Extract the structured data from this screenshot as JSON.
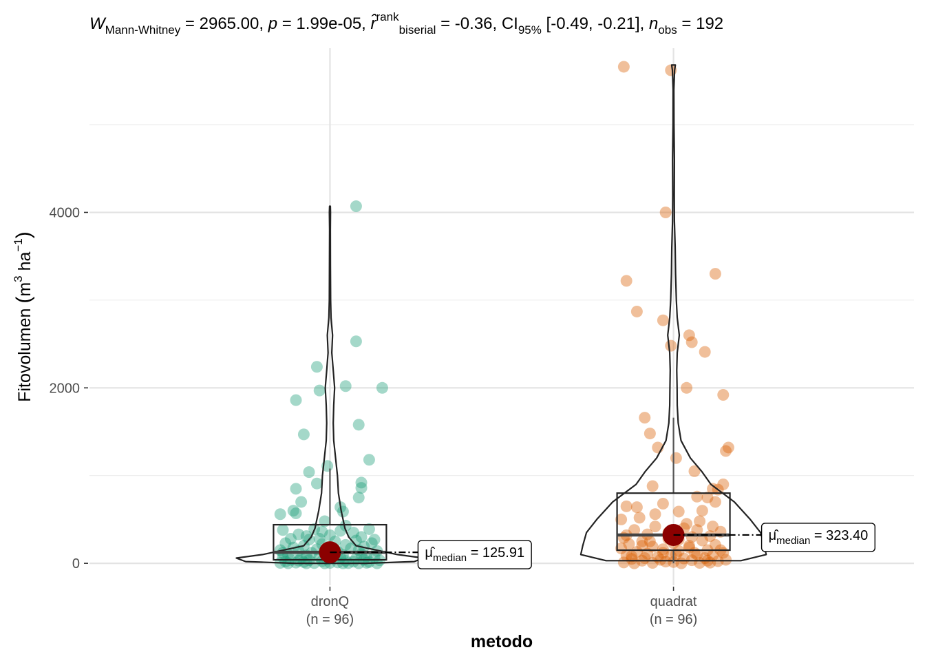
{
  "chart_data": {
    "type": "violin-box-scatter",
    "subtitle": {
      "parts": [
        {
          "t": "W",
          "italic": true
        },
        {
          "t": "Mann-Whitney",
          "sub": true
        },
        {
          "t": " = 2965.00, "
        },
        {
          "t": "p",
          "italic": true
        },
        {
          "t": " = 1.99e-05, "
        },
        {
          "t": "r̂",
          "italic": true
        },
        {
          "t": "rank",
          "sup": true
        },
        {
          "t": "biserial",
          "sub": true
        },
        {
          "t": " = -0.36, CI"
        },
        {
          "t": "95%",
          "sub": true
        },
        {
          "t": " [-0.49, -0.21], "
        },
        {
          "t": "n",
          "italic": true
        },
        {
          "t": "obs",
          "sub": true
        },
        {
          "t": " = 192"
        }
      ]
    },
    "xlabel": "metodo",
    "ylabel": {
      "parts": [
        {
          "t": "Fitovolumen "
        },
        {
          "t": "(",
          "big": true
        },
        {
          "t": "m"
        },
        {
          "t": "3",
          "sup": true
        },
        {
          "t": " ha"
        },
        {
          "t": "−1",
          "sup": true
        },
        {
          "t": ")",
          "big": true
        }
      ]
    },
    "yticks": [
      0,
      2000,
      4000
    ],
    "ylim": [
      -250,
      5950
    ],
    "grid": true,
    "categories": [
      {
        "name": "dronQ",
        "n_label": "(n = 96)",
        "color": "#1b9e77",
        "median": 125.91,
        "box": {
          "q1": 40,
          "median": 125.91,
          "q3": 440,
          "whisker_low": 0,
          "whisker_high": 1080
        },
        "median_label": {
          "symbol": "μ̂",
          "sub": "median",
          "value": "= 125.91"
        },
        "violin": [
          [
            0,
            0.38
          ],
          [
            20,
            0.9
          ],
          [
            60,
            1.0
          ],
          [
            100,
            0.72
          ],
          [
            200,
            0.28
          ],
          [
            300,
            0.2
          ],
          [
            400,
            0.16
          ],
          [
            600,
            0.12
          ],
          [
            800,
            0.09
          ],
          [
            1000,
            0.08
          ],
          [
            1200,
            0.06
          ],
          [
            1400,
            0.04
          ],
          [
            1600,
            0.035
          ],
          [
            1800,
            0.04
          ],
          [
            2000,
            0.05
          ],
          [
            2200,
            0.035
          ],
          [
            2400,
            0.02
          ],
          [
            2600,
            0.028
          ],
          [
            2800,
            0.012
          ],
          [
            3000,
            0.007
          ],
          [
            3400,
            0.005
          ],
          [
            3800,
            0.004
          ],
          [
            4000,
            0.006
          ],
          [
            4070,
            0.004
          ]
        ],
        "points": [
          [
            0.1,
            4070
          ],
          [
            0.1,
            2530
          ],
          [
            0.2,
            2000
          ],
          [
            -0.05,
            2240
          ],
          [
            0.06,
            2020
          ],
          [
            -0.04,
            1970
          ],
          [
            -0.13,
            1860
          ],
          [
            0.11,
            1580
          ],
          [
            -0.1,
            1470
          ],
          [
            0.15,
            1180
          ],
          [
            -0.01,
            1110
          ],
          [
            -0.08,
            1040
          ],
          [
            0.12,
            920
          ],
          [
            0.12,
            860
          ],
          [
            -0.05,
            910
          ],
          [
            -0.13,
            850
          ],
          [
            0.11,
            750
          ],
          [
            -0.11,
            700
          ],
          [
            0.04,
            640
          ],
          [
            -0.14,
            600
          ],
          [
            0.05,
            590
          ],
          [
            -0.19,
            560
          ],
          [
            -0.13,
            570
          ],
          [
            -0.18,
            380
          ],
          [
            -0.12,
            330
          ],
          [
            -0.06,
            390
          ],
          [
            -0.03,
            360
          ],
          [
            0.0,
            320
          ],
          [
            0.04,
            370
          ],
          [
            0.09,
            350
          ],
          [
            0.15,
            390
          ],
          [
            -0.15,
            280
          ],
          [
            -0.08,
            270
          ],
          [
            0.02,
            250
          ],
          [
            0.1,
            260
          ],
          [
            0.17,
            270
          ],
          [
            -0.17,
            230
          ],
          [
            -0.1,
            200
          ],
          [
            -0.03,
            220
          ],
          [
            0.06,
            210
          ],
          [
            0.13,
            190
          ],
          [
            -0.19,
            150
          ],
          [
            -0.12,
            140
          ],
          [
            -0.05,
            160
          ],
          [
            0.03,
            130
          ],
          [
            0.11,
            150
          ],
          [
            0.18,
            140
          ],
          [
            -0.16,
            100
          ],
          [
            -0.09,
            90
          ],
          [
            -0.02,
            110
          ],
          [
            0.05,
            95
          ],
          [
            0.12,
            105
          ],
          [
            -0.18,
            70
          ],
          [
            -0.11,
            60
          ],
          [
            -0.04,
            75
          ],
          [
            0.04,
            65
          ],
          [
            0.1,
            55
          ],
          [
            0.17,
            70
          ],
          [
            -0.15,
            40
          ],
          [
            -0.08,
            35
          ],
          [
            -0.01,
            45
          ],
          [
            0.06,
            30
          ],
          [
            0.13,
            40
          ],
          [
            0.19,
            35
          ],
          [
            -0.17,
            20
          ],
          [
            -0.1,
            15
          ],
          [
            -0.03,
            25
          ],
          [
            0.03,
            10
          ],
          [
            0.09,
            20
          ],
          [
            0.15,
            15
          ],
          [
            -0.19,
            5
          ],
          [
            -0.13,
            8
          ],
          [
            -0.06,
            3
          ],
          [
            0.0,
            5
          ],
          [
            0.07,
            2
          ],
          [
            0.14,
            6
          ],
          [
            -0.16,
            0
          ],
          [
            -0.09,
            0
          ],
          [
            -0.02,
            0
          ],
          [
            0.05,
            0
          ],
          [
            0.11,
            0
          ],
          [
            0.18,
            0
          ],
          [
            -0.12,
            30
          ],
          [
            0.01,
            60
          ],
          [
            -0.07,
            120
          ],
          [
            0.08,
            170
          ],
          [
            -0.14,
            180
          ],
          [
            0.16,
            230
          ],
          [
            -0.04,
            280
          ],
          [
            0.12,
            300
          ],
          [
            -0.09,
            310
          ],
          [
            0.06,
            430
          ],
          [
            -0.02,
            480
          ],
          [
            0.14,
            80
          ],
          [
            -0.18,
            120
          ],
          [
            0.02,
            150
          ]
        ]
      },
      {
        "name": "quadrat",
        "n_label": "(n = 96)",
        "color": "#d95f02",
        "median": 323.4,
        "box": {
          "q1": 150,
          "median": 323.4,
          "q3": 800,
          "whisker_low": 0,
          "whisker_high": 1660
        },
        "median_label": {
          "symbol": "μ̂",
          "sub": "median",
          "value": "= 323.40"
        },
        "violin": [
          [
            30,
            0.72
          ],
          [
            100,
            0.99
          ],
          [
            200,
            0.97
          ],
          [
            350,
            0.93
          ],
          [
            500,
            0.82
          ],
          [
            700,
            0.65
          ],
          [
            900,
            0.4
          ],
          [
            1050,
            0.3
          ],
          [
            1200,
            0.18
          ],
          [
            1400,
            0.08
          ],
          [
            1600,
            0.05
          ],
          [
            1800,
            0.04
          ],
          [
            2000,
            0.038
          ],
          [
            2200,
            0.035
          ],
          [
            2400,
            0.04
          ],
          [
            2600,
            0.062
          ],
          [
            2800,
            0.04
          ],
          [
            3000,
            0.03
          ],
          [
            3300,
            0.022
          ],
          [
            3600,
            0.018
          ],
          [
            3900,
            0.01
          ],
          [
            4200,
            0.008
          ],
          [
            4600,
            0.01
          ],
          [
            5000,
            0.005
          ],
          [
            5400,
            0.004
          ],
          [
            5620,
            0.012
          ],
          [
            5680,
            0.02
          ]
        ],
        "points": [
          [
            -0.19,
            5660
          ],
          [
            -0.01,
            5620
          ],
          [
            -0.03,
            4000
          ],
          [
            0.16,
            3300
          ],
          [
            -0.18,
            3220
          ],
          [
            -0.14,
            2870
          ],
          [
            -0.04,
            2770
          ],
          [
            0.06,
            2600
          ],
          [
            0.07,
            2520
          ],
          [
            -0.01,
            2480
          ],
          [
            0.12,
            2410
          ],
          [
            0.05,
            2000
          ],
          [
            0.19,
            1920
          ],
          [
            -0.11,
            1660
          ],
          [
            -0.09,
            1480
          ],
          [
            0.21,
            1320
          ],
          [
            -0.06,
            1320
          ],
          [
            0.2,
            1280
          ],
          [
            0.01,
            1200
          ],
          [
            0.08,
            1050
          ],
          [
            0.19,
            900
          ],
          [
            0.15,
            850
          ],
          [
            0.17,
            840
          ],
          [
            -0.08,
            880
          ],
          [
            -0.18,
            650
          ],
          [
            0.09,
            760
          ],
          [
            0.13,
            750
          ],
          [
            -0.04,
            680
          ],
          [
            -0.14,
            640
          ],
          [
            0.02,
            590
          ],
          [
            -0.2,
            500
          ],
          [
            -0.07,
            420
          ],
          [
            0.1,
            480
          ],
          [
            -0.15,
            380
          ],
          [
            0.04,
            400
          ],
          [
            0.18,
            360
          ],
          [
            -0.1,
            330
          ],
          [
            0.14,
            310
          ],
          [
            -0.19,
            290
          ],
          [
            -0.02,
            280
          ],
          [
            0.07,
            300
          ],
          [
            -0.12,
            250
          ],
          [
            0.11,
            260
          ],
          [
            -0.17,
            220
          ],
          [
            0.0,
            230
          ],
          [
            0.16,
            210
          ],
          [
            -0.08,
            190
          ],
          [
            0.06,
            200
          ],
          [
            -0.2,
            170
          ],
          [
            -0.04,
            160
          ],
          [
            0.13,
            150
          ],
          [
            -0.14,
            130
          ],
          [
            0.02,
            140
          ],
          [
            0.19,
            120
          ],
          [
            -0.1,
            110
          ],
          [
            0.09,
            100
          ],
          [
            -0.18,
            90
          ],
          [
            -0.01,
            80
          ],
          [
            0.15,
            90
          ],
          [
            -0.06,
            70
          ],
          [
            0.12,
            60
          ],
          [
            -0.16,
            50
          ],
          [
            0.04,
            55
          ],
          [
            0.2,
            40
          ],
          [
            -0.12,
            30
          ],
          [
            0.07,
            35
          ],
          [
            -0.03,
            20
          ],
          [
            0.17,
            25
          ],
          [
            -0.19,
            10
          ],
          [
            0.0,
            15
          ],
          [
            0.1,
            5
          ],
          [
            -0.08,
            5
          ],
          [
            0.14,
            8
          ],
          [
            -0.15,
            0
          ],
          [
            0.03,
            0
          ],
          [
            -0.05,
            40
          ],
          [
            0.08,
            120
          ],
          [
            -0.11,
            60
          ],
          [
            0.18,
            150
          ],
          [
            -0.02,
            350
          ],
          [
            0.05,
            450
          ],
          [
            -0.13,
            520
          ],
          [
            0.11,
            600
          ],
          [
            -0.07,
            560
          ],
          [
            0.16,
            700
          ],
          [
            -0.16,
            80
          ],
          [
            0.01,
            100
          ],
          [
            0.13,
            30
          ],
          [
            -0.09,
            250
          ],
          [
            0.06,
            180
          ],
          [
            -0.18,
            320
          ],
          [
            0.09,
            380
          ],
          [
            -0.04,
            120
          ],
          [
            0.15,
            420
          ],
          [
            -0.12,
            200
          ],
          [
            0.02,
            270
          ]
        ]
      }
    ]
  }
}
